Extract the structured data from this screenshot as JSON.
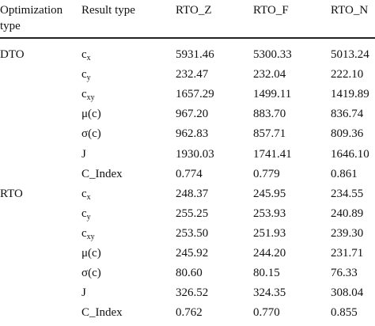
{
  "table": {
    "header": [
      "Optimization type",
      "Result type",
      "RTO_Z",
      "RTO_F",
      "RTO_N"
    ],
    "groups": [
      {
        "name": "DTO",
        "rows": [
          {
            "label": "c",
            "sub": "x",
            "values": [
              "5931.46",
              "5300.33",
              "5013.24"
            ]
          },
          {
            "label": "c",
            "sub": "y",
            "values": [
              "232.47",
              "232.04",
              "222.10"
            ]
          },
          {
            "label": "c",
            "sub": "xy",
            "values": [
              "1657.29",
              "1499.11",
              "1419.89"
            ]
          },
          {
            "label": "μ(c)",
            "values": [
              "967.20",
              "883.70",
              "836.74"
            ]
          },
          {
            "label": "σ(c)",
            "values": [
              "962.83",
              "857.71",
              "809.36"
            ]
          },
          {
            "label": "J",
            "values": [
              "1930.03",
              "1741.41",
              "1646.10"
            ]
          },
          {
            "label": "C_Index",
            "values": [
              "0.774",
              "0.779",
              "0.861"
            ]
          }
        ]
      },
      {
        "name": "RTO",
        "rows": [
          {
            "label": "c",
            "sub": "x",
            "values": [
              "248.37",
              "245.95",
              "234.55"
            ]
          },
          {
            "label": "c",
            "sub": "y",
            "values": [
              "255.25",
              "253.93",
              "240.89"
            ]
          },
          {
            "label": "c",
            "sub": "xy",
            "values": [
              "253.50",
              "251.93",
              "239.30"
            ]
          },
          {
            "label": "μ(c)",
            "values": [
              "245.92",
              "244.20",
              "231.71"
            ]
          },
          {
            "label": "σ(c)",
            "values": [
              "80.60",
              "80.15",
              "76.33"
            ]
          },
          {
            "label": "J",
            "values": [
              "326.52",
              "324.35",
              "308.04"
            ]
          },
          {
            "label": "C_Index",
            "values": [
              "0.762",
              "0.770",
              "0.855"
            ]
          }
        ]
      }
    ]
  }
}
